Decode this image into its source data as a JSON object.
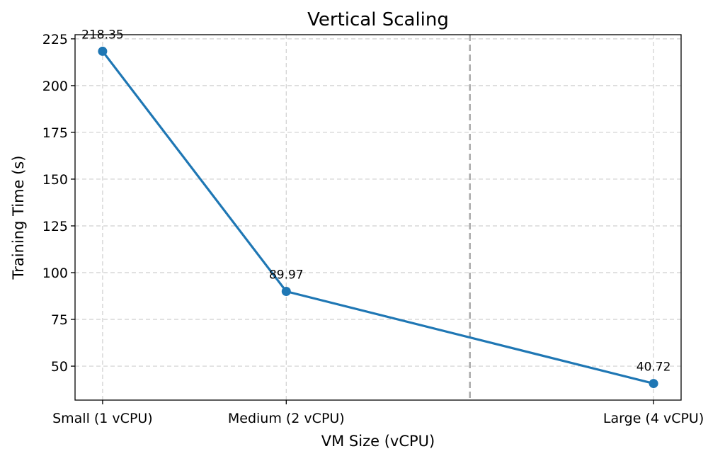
{
  "chart_data": {
    "type": "line",
    "title": "Vertical Scaling",
    "xlabel": "VM Size (vCPU)",
    "ylabel": "Training Time (s)",
    "categories": [
      "Small (1 vCPU)",
      "Medium (2 vCPU)",
      "Large (4 vCPU)"
    ],
    "x": [
      1,
      2,
      4
    ],
    "values": [
      218.35,
      89.97,
      40.72
    ],
    "data_labels": [
      "218.35",
      "89.97",
      "40.72"
    ],
    "xlim": [
      0.85,
      4.15
    ],
    "ylim": [
      31.85,
      227.22
    ],
    "yticks": [
      50,
      75,
      100,
      125,
      150,
      175,
      200,
      225
    ],
    "reference_line_x": 3,
    "grid": true,
    "line_color": "#1f77b4",
    "marker_color": "#1f77b4"
  }
}
